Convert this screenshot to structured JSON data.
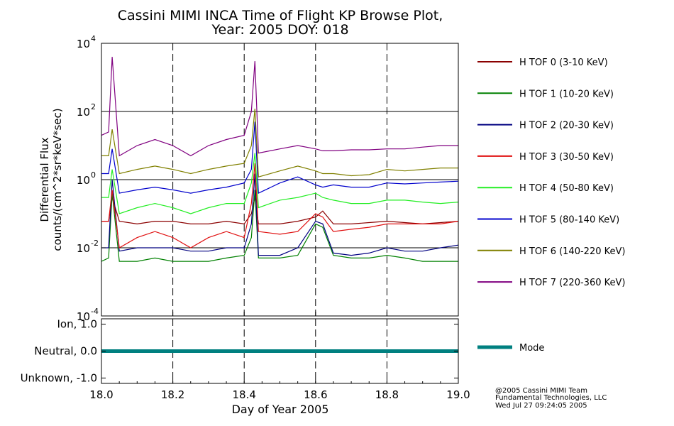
{
  "title_line1": "Cassini MIMI INCA Time of Flight KP Browse Plot,",
  "title_line2": "Year: 2005 DOY: 018",
  "credits": [
    "@2005 Cassini MIMI Team",
    "Fundamental Technologies, LLC",
    "Wed Jul 27 09:24:05 2005"
  ],
  "colors": {
    "tof0": "#8b0000",
    "tof1": "#008000",
    "tof2": "#000080",
    "tof3": "#e01010",
    "tof4": "#22ee22",
    "tof5": "#0000cc",
    "tof6": "#808000",
    "tof7": "#800080",
    "mode": "#008080"
  },
  "chart_data": [
    {
      "type": "line",
      "ylabel_line1": "Differential Flux",
      "ylabel_line2": "counts/(cm^2*sr*keV*sec)",
      "yscale": "log",
      "ylim": [
        0.0001,
        10000
      ],
      "y_ticks": [
        {
          "value": 0.0001,
          "base": "10",
          "exp": "-4"
        },
        {
          "value": 0.01,
          "base": "10",
          "exp": "-2"
        },
        {
          "value": 1,
          "base": "10",
          "exp": "0"
        },
        {
          "value": 100,
          "base": "10",
          "exp": "2"
        },
        {
          "value": 10000,
          "base": "10",
          "exp": "4"
        }
      ],
      "xlim": [
        18.0,
        19.0
      ],
      "grid_horizontal": [
        0.01,
        1,
        100
      ],
      "grid_vertical_dashed": [
        18.2,
        18.4,
        18.6,
        18.8
      ],
      "legend_placement": "right",
      "series": [
        {
          "name": "H TOF 0 (3-10 KeV)",
          "color_key": "tof0",
          "x": [
            18.0,
            18.02,
            18.03,
            18.05,
            18.1,
            18.15,
            18.2,
            18.25,
            18.3,
            18.35,
            18.4,
            18.42,
            18.43,
            18.44,
            18.5,
            18.55,
            18.6,
            18.62,
            18.65,
            18.7,
            18.75,
            18.8,
            18.85,
            18.9,
            18.95,
            19.0
          ],
          "y": [
            0.06,
            0.06,
            0.3,
            0.06,
            0.05,
            0.06,
            0.06,
            0.05,
            0.05,
            0.06,
            0.05,
            0.1,
            0.3,
            0.05,
            0.05,
            0.06,
            0.08,
            0.12,
            0.05,
            0.05,
            0.055,
            0.06,
            0.055,
            0.05,
            0.055,
            0.06
          ]
        },
        {
          "name": "H TOF 1 (10-20 KeV)",
          "color_key": "tof1",
          "x": [
            18.0,
            18.02,
            18.03,
            18.05,
            18.1,
            18.15,
            18.2,
            18.25,
            18.3,
            18.35,
            18.4,
            18.42,
            18.43,
            18.44,
            18.5,
            18.55,
            18.6,
            18.62,
            18.65,
            18.7,
            18.75,
            18.8,
            18.85,
            18.9,
            18.95,
            19.0
          ],
          "y": [
            0.004,
            0.005,
            0.4,
            0.004,
            0.004,
            0.005,
            0.004,
            0.004,
            0.004,
            0.005,
            0.006,
            0.02,
            0.5,
            0.005,
            0.005,
            0.006,
            0.05,
            0.04,
            0.006,
            0.005,
            0.005,
            0.006,
            0.005,
            0.004,
            0.004,
            0.004
          ]
        },
        {
          "name": "H TOF 2 (20-30 KeV)",
          "color_key": "tof2",
          "x": [
            18.0,
            18.02,
            18.03,
            18.05,
            18.1,
            18.15,
            18.2,
            18.25,
            18.3,
            18.35,
            18.4,
            18.42,
            18.43,
            18.44,
            18.5,
            18.55,
            18.6,
            18.62,
            18.65,
            18.7,
            18.75,
            18.8,
            18.85,
            18.9,
            18.95,
            19.0
          ],
          "y": [
            0.01,
            0.01,
            1.0,
            0.008,
            0.01,
            0.01,
            0.01,
            0.008,
            0.008,
            0.01,
            0.01,
            0.05,
            1.5,
            0.006,
            0.006,
            0.01,
            0.06,
            0.05,
            0.007,
            0.006,
            0.007,
            0.01,
            0.008,
            0.008,
            0.01,
            0.012
          ]
        },
        {
          "name": "H TOF 3 (30-50 KeV)",
          "color_key": "tof3",
          "x": [
            18.0,
            18.02,
            18.03,
            18.05,
            18.1,
            18.15,
            18.2,
            18.25,
            18.3,
            18.35,
            18.4,
            18.42,
            18.43,
            18.44,
            18.5,
            18.55,
            18.6,
            18.62,
            18.65,
            18.7,
            18.75,
            18.8,
            18.85,
            18.9,
            18.95,
            19.0
          ],
          "y": [
            0.06,
            0.06,
            0.5,
            0.01,
            0.02,
            0.03,
            0.02,
            0.01,
            0.02,
            0.03,
            0.02,
            0.2,
            3.0,
            0.03,
            0.025,
            0.03,
            0.1,
            0.08,
            0.03,
            0.035,
            0.04,
            0.05,
            0.05,
            0.05,
            0.05,
            0.06
          ]
        },
        {
          "name": "H TOF 4 (50-80 KeV)",
          "color_key": "tof4",
          "x": [
            18.0,
            18.02,
            18.03,
            18.05,
            18.1,
            18.15,
            18.2,
            18.25,
            18.3,
            18.35,
            18.4,
            18.42,
            18.43,
            18.44,
            18.5,
            18.55,
            18.6,
            18.62,
            18.65,
            18.7,
            18.75,
            18.8,
            18.85,
            18.9,
            18.95,
            19.0
          ],
          "y": [
            0.3,
            0.3,
            2.0,
            0.1,
            0.15,
            0.2,
            0.15,
            0.1,
            0.15,
            0.2,
            0.2,
            0.8,
            6.0,
            0.15,
            0.25,
            0.3,
            0.4,
            0.3,
            0.25,
            0.2,
            0.2,
            0.25,
            0.25,
            0.22,
            0.2,
            0.22
          ]
        },
        {
          "name": "H TOF 5 (80-140 KeV)",
          "color_key": "tof5",
          "x": [
            18.0,
            18.02,
            18.03,
            18.05,
            18.1,
            18.15,
            18.2,
            18.25,
            18.3,
            18.35,
            18.4,
            18.42,
            18.43,
            18.44,
            18.5,
            18.55,
            18.6,
            18.62,
            18.65,
            18.7,
            18.75,
            18.8,
            18.85,
            18.9,
            18.95,
            19.0
          ],
          "y": [
            1.5,
            1.5,
            8.0,
            0.4,
            0.5,
            0.6,
            0.5,
            0.4,
            0.5,
            0.6,
            0.8,
            2.0,
            50,
            0.4,
            0.8,
            1.2,
            0.7,
            0.6,
            0.7,
            0.6,
            0.6,
            0.8,
            0.75,
            0.8,
            0.85,
            0.9
          ]
        },
        {
          "name": "H TOF 6 (140-220 KeV)",
          "color_key": "tof6",
          "x": [
            18.0,
            18.02,
            18.03,
            18.05,
            18.1,
            18.15,
            18.2,
            18.25,
            18.3,
            18.35,
            18.4,
            18.42,
            18.43,
            18.44,
            18.5,
            18.55,
            18.6,
            18.62,
            18.65,
            18.7,
            18.75,
            18.8,
            18.85,
            18.9,
            18.95,
            19.0
          ],
          "y": [
            5,
            5,
            30,
            1.5,
            2,
            2.5,
            2,
            1.5,
            2,
            2.5,
            3,
            10,
            120,
            1.2,
            1.8,
            2.5,
            1.8,
            1.5,
            1.5,
            1.3,
            1.4,
            2.0,
            1.8,
            2.0,
            2.2,
            2.2
          ]
        },
        {
          "name": "H TOF 7 (220-360 KeV)",
          "color_key": "tof7",
          "x": [
            18.0,
            18.02,
            18.03,
            18.05,
            18.1,
            18.15,
            18.2,
            18.25,
            18.3,
            18.35,
            18.4,
            18.42,
            18.43,
            18.44,
            18.5,
            18.55,
            18.6,
            18.62,
            18.65,
            18.7,
            18.75,
            18.8,
            18.85,
            18.9,
            18.95,
            19.0
          ],
          "y": [
            20,
            25,
            4000,
            5,
            10,
            15,
            10,
            5,
            10,
            15,
            20,
            100,
            3000,
            6,
            8,
            10,
            8,
            7,
            7,
            7.5,
            7.5,
            8,
            8,
            9,
            10,
            10
          ]
        }
      ]
    },
    {
      "type": "line",
      "ylim": [
        -1.2,
        1.2
      ],
      "y_ticks": [
        {
          "value": 1.0,
          "label": "Ion, 1.0"
        },
        {
          "value": 0.0,
          "label": "Neutral, 0.0"
        },
        {
          "value": -1.0,
          "label": "Unknown, -1.0"
        }
      ],
      "xlim": [
        18.0,
        19.0
      ],
      "grid_vertical_dashed": [
        18.2,
        18.4,
        18.6,
        18.8
      ],
      "xlabel": "Day of Year 2005",
      "x_ticks": [
        {
          "value": 18.0,
          "label": "18.0"
        },
        {
          "value": 18.2,
          "label": "18.2"
        },
        {
          "value": 18.4,
          "label": "18.4"
        },
        {
          "value": 18.6,
          "label": "18.6"
        },
        {
          "value": 18.8,
          "label": "18.8"
        },
        {
          "value": 19.0,
          "label": "19.0"
        }
      ],
      "series": [
        {
          "name": "Mode",
          "color_key": "mode",
          "x": [
            18.0,
            19.0
          ],
          "y": [
            0.0,
            0.0
          ]
        }
      ]
    }
  ]
}
